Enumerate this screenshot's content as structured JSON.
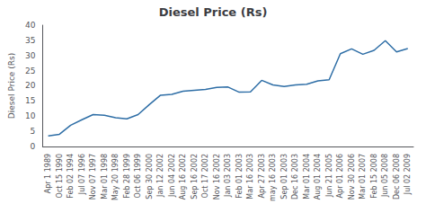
{
  "chart_data": {
    "type": "line",
    "title": "Diesel Price (Rs)",
    "ylabel": "Diesel Price (Rs)",
    "categories": [
      "Apr 1 1989",
      "Oct 15 1990",
      "Feb 02 1994",
      "Jul 07 1996",
      "Nov 07 1997",
      "Mar 01 1998",
      "May 20 1998",
      "Feb 28 1999",
      "Oct 06 1999",
      "Sep 30 2000",
      "Jan 12 2002",
      "Jun 04 2002",
      "Aug 16 2002",
      "Sep 16 2002",
      "Oct 17 2002",
      "Nov 16 2002",
      "Jan 03 2003",
      "Feb 01 2003",
      "Mar 16 2003",
      "Apr 27 2003",
      "may 16 2003",
      "Sep 01 2003",
      "Dec 16 2003",
      "Mar 01 2004",
      "Aug 01 2004",
      "Jun 21 2005",
      "Apr 01 2006",
      "Nov 30 2006",
      "Mar 01 2007",
      "Feb 15 2008",
      "Jun 05 2008",
      "Dec 06 2008",
      "Jul 02 2009"
    ],
    "values": [
      3.5,
      4.0,
      7.0,
      8.8,
      10.5,
      10.3,
      9.5,
      9.1,
      10.5,
      13.8,
      16.9,
      17.2,
      18.2,
      18.5,
      18.8,
      19.5,
      19.6,
      17.9,
      18.0,
      21.8,
      20.3,
      19.8,
      20.3,
      20.5,
      21.6,
      22.0,
      30.6,
      32.2,
      30.4,
      31.7,
      34.9,
      31.2,
      32.3
    ],
    "color": "#2E6EA6",
    "ylim": [
      0,
      40
    ],
    "yticks": [
      0,
      5,
      10,
      15,
      20,
      25,
      30,
      35,
      40
    ],
    "grid": false
  }
}
